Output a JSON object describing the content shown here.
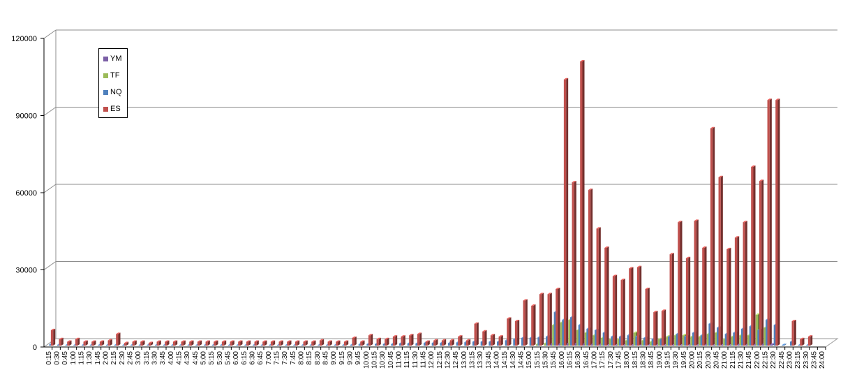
{
  "chart_data": {
    "type": "bar",
    "categories": [
      "0:15",
      "0:30",
      "0:45",
      "1:00",
      "1:15",
      "1:30",
      "1:45",
      "2:00",
      "2:15",
      "2:30",
      "2:45",
      "3:00",
      "3:15",
      "3:30",
      "3:45",
      "4:00",
      "4:15",
      "4:30",
      "4:45",
      "5:00",
      "5:15",
      "5:30",
      "5:45",
      "6:00",
      "6:15",
      "6:30",
      "6:45",
      "7:00",
      "7:15",
      "7:30",
      "7:45",
      "8:00",
      "8:15",
      "8:30",
      "8:45",
      "9:00",
      "9:15",
      "9:30",
      "9:45",
      "10:00",
      "10:15",
      "10:30",
      "10:45",
      "11:00",
      "11:15",
      "11:30",
      "11:45",
      "12:00",
      "12:15",
      "12:30",
      "12:45",
      "13:00",
      "13:15",
      "13:30",
      "13:45",
      "14:00",
      "14:15",
      "14:30",
      "14:45",
      "15:00",
      "15:15",
      "15:30",
      "15:45",
      "16:00",
      "16:15",
      "16:30",
      "16:45",
      "17:00",
      "17:15",
      "17:30",
      "17:45",
      "18:00",
      "18:15",
      "18:30",
      "18:45",
      "19:00",
      "19:15",
      "19:30",
      "19:45",
      "20:00",
      "20:15",
      "20:30",
      "20:45",
      "21:00",
      "21:15",
      "21:30",
      "21:45",
      "22:00",
      "22:15",
      "22:30",
      "22:45",
      "23:00",
      "23:15",
      "23:30",
      "23:45",
      "24:00"
    ],
    "series": [
      {
        "name": "YM",
        "color": "#7b5fa6",
        "values": [
          0,
          0,
          0,
          0,
          0,
          0,
          0,
          0,
          0,
          0,
          0,
          0,
          0,
          0,
          0,
          0,
          0,
          0,
          0,
          0,
          0,
          0,
          0,
          0,
          0,
          0,
          0,
          0,
          0,
          0,
          0,
          0,
          0,
          0,
          0,
          0,
          0,
          0,
          0,
          0,
          0,
          0,
          0,
          0,
          0,
          0,
          0,
          0,
          0,
          0,
          0,
          0,
          0,
          0,
          0,
          0,
          0,
          0,
          0,
          0,
          0,
          0,
          500,
          600,
          700,
          800,
          600,
          500,
          400,
          300,
          300,
          300,
          300,
          200,
          200,
          300,
          300,
          300,
          300,
          300,
          300,
          400,
          300,
          300,
          300,
          400,
          400,
          400,
          500,
          400,
          0,
          0,
          0,
          0,
          0,
          0
        ]
      },
      {
        "name": "TF",
        "color": "#9bbb59",
        "values": [
          0,
          0,
          0,
          0,
          0,
          0,
          0,
          0,
          0,
          0,
          0,
          0,
          0,
          0,
          0,
          0,
          0,
          0,
          0,
          0,
          0,
          0,
          0,
          0,
          0,
          0,
          0,
          0,
          0,
          0,
          0,
          0,
          0,
          0,
          0,
          0,
          0,
          0,
          0,
          0,
          0,
          0,
          0,
          0,
          0,
          0,
          0,
          0,
          0,
          0,
          0,
          0,
          0,
          0,
          0,
          0,
          0,
          0,
          0,
          0,
          500,
          800,
          8000,
          9000,
          10000,
          6000,
          5000,
          4000,
          3000,
          2500,
          2500,
          2000,
          5000,
          2000,
          1500,
          2500,
          3500,
          4000,
          4000,
          3500,
          3500,
          4500,
          5000,
          2500,
          3500,
          4000,
          4000,
          12000,
          7000,
          0,
          0,
          0,
          0,
          0,
          0,
          0
        ]
      },
      {
        "name": "NQ",
        "color": "#4f81bd",
        "values": [
          400,
          300,
          200,
          200,
          200,
          200,
          200,
          200,
          200,
          200,
          200,
          200,
          200,
          200,
          200,
          200,
          200,
          200,
          200,
          200,
          200,
          200,
          200,
          200,
          200,
          200,
          200,
          200,
          200,
          200,
          200,
          200,
          200,
          200,
          200,
          200,
          200,
          300,
          500,
          600,
          600,
          600,
          600,
          800,
          800,
          800,
          1000,
          1000,
          1000,
          1000,
          1200,
          1300,
          1500,
          1500,
          1500,
          1500,
          2000,
          2500,
          3000,
          3000,
          3200,
          3500,
          13000,
          10000,
          11000,
          8000,
          6500,
          6000,
          5000,
          3500,
          3500,
          4000,
          3500,
          3000,
          2500,
          2500,
          3500,
          4500,
          3500,
          5000,
          4000,
          8500,
          7000,
          4500,
          5000,
          6500,
          7500,
          6000,
          10000,
          8000,
          200,
          1500,
          200,
          200,
          0,
          0
        ]
      },
      {
        "name": "ES",
        "color": "#c0504d",
        "values": [
          6000,
          2500,
          1500,
          2500,
          1500,
          1500,
          1500,
          2000,
          4500,
          1000,
          1500,
          1500,
          1000,
          1500,
          1500,
          1500,
          1500,
          1500,
          1500,
          1500,
          1500,
          1500,
          1500,
          1500,
          1500,
          1500,
          1500,
          1500,
          1500,
          1500,
          1500,
          1500,
          1500,
          2000,
          1500,
          1500,
          1500,
          3000,
          1500,
          4000,
          2500,
          2500,
          3500,
          3500,
          4000,
          4500,
          1500,
          2000,
          2000,
          2000,
          3500,
          2000,
          8500,
          5500,
          4000,
          3500,
          10500,
          9500,
          17500,
          15500,
          20000,
          20000,
          22000,
          103500,
          63500,
          110500,
          60500,
          45500,
          38000,
          27000,
          25500,
          30000,
          30500,
          22000,
          13000,
          13500,
          35500,
          48000,
          34000,
          48500,
          38000,
          84500,
          65500,
          37500,
          42000,
          48000,
          69500,
          64000,
          95500,
          95500,
          0,
          9500,
          2500,
          3500,
          0,
          0
        ]
      }
    ],
    "ylim": [
      0,
      120000
    ],
    "yticks": [
      0,
      30000,
      60000,
      90000,
      120000
    ],
    "grid": true,
    "legend_position": "top-left"
  }
}
